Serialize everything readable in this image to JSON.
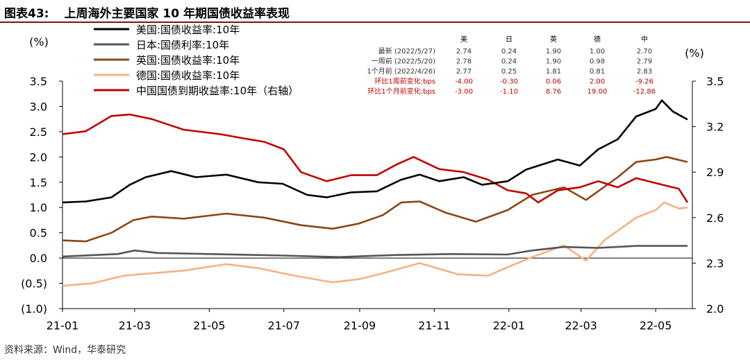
{
  "figure": {
    "label": "图表43:",
    "title": "上周海外主要国家 10 年期国债收益率表现",
    "source": "资料来源：Wind，华泰研究"
  },
  "chart_data": {
    "type": "line",
    "left_axis": {
      "unit": "(%)",
      "ylim": [
        -1.0,
        3.5
      ],
      "ticks": [
        3.5,
        3.0,
        2.5,
        2.0,
        1.5,
        1.0,
        0.5,
        0.0,
        -0.5,
        -1.0
      ],
      "tick_labels": [
        "3.5",
        "3.0",
        "2.5",
        "2.0",
        "1.5",
        "1.0",
        "0.5",
        "0.0",
        "(0.5)",
        "(1.0)"
      ]
    },
    "right_axis": {
      "unit": "(%)",
      "ylim": [
        2.0,
        3.5
      ],
      "ticks": [
        3.5,
        3.2,
        2.9,
        2.6,
        2.3,
        2.0
      ],
      "tick_labels": [
        "3.5",
        "3.2",
        "2.9",
        "2.6",
        "2.3",
        "2.0"
      ]
    },
    "x_axis": {
      "range": [
        "2021-01-01",
        "2022-05-31"
      ],
      "ticks": [
        "2021-01-01",
        "2021-03-01",
        "2021-05-01",
        "2021-07-01",
        "2021-09-01",
        "2021-11-01",
        "2022-01-01",
        "2022-03-01",
        "2022-05-01"
      ],
      "tick_labels": [
        "21-01",
        "21-03",
        "21-05",
        "21-07",
        "21-09",
        "21-11",
        "22-01",
        "22-03",
        "22-05"
      ]
    },
    "legend_position": "top-left",
    "series": [
      {
        "name": "美国:国债收益率:10年",
        "color": "#000000",
        "axis": "left",
        "points": [
          [
            "2021-01-01",
            1.1
          ],
          [
            "2021-01-20",
            1.12
          ],
          [
            "2021-02-10",
            1.2
          ],
          [
            "2021-02-25",
            1.45
          ],
          [
            "2021-03-10",
            1.6
          ],
          [
            "2021-03-31",
            1.72
          ],
          [
            "2021-04-20",
            1.6
          ],
          [
            "2021-05-15",
            1.65
          ],
          [
            "2021-06-10",
            1.5
          ],
          [
            "2021-06-30",
            1.47
          ],
          [
            "2021-07-20",
            1.25
          ],
          [
            "2021-08-05",
            1.2
          ],
          [
            "2021-08-25",
            1.3
          ],
          [
            "2021-09-15",
            1.32
          ],
          [
            "2021-10-05",
            1.55
          ],
          [
            "2021-10-20",
            1.65
          ],
          [
            "2021-11-05",
            1.52
          ],
          [
            "2021-11-25",
            1.6
          ],
          [
            "2021-12-10",
            1.45
          ],
          [
            "2021-12-31",
            1.52
          ],
          [
            "2022-01-15",
            1.75
          ],
          [
            "2022-02-10",
            1.95
          ],
          [
            "2022-02-28",
            1.83
          ],
          [
            "2022-03-15",
            2.15
          ],
          [
            "2022-03-31",
            2.35
          ],
          [
            "2022-04-15",
            2.8
          ],
          [
            "2022-05-01",
            2.95
          ],
          [
            "2022-05-06",
            3.12
          ],
          [
            "2022-05-15",
            2.9
          ],
          [
            "2022-05-27",
            2.74
          ]
        ]
      },
      {
        "name": "日本:国债利率:10年",
        "color": "#555555",
        "axis": "left",
        "points": [
          [
            "2021-01-01",
            0.03
          ],
          [
            "2021-02-15",
            0.08
          ],
          [
            "2021-03-01",
            0.15
          ],
          [
            "2021-03-20",
            0.1
          ],
          [
            "2021-05-01",
            0.08
          ],
          [
            "2021-07-01",
            0.05
          ],
          [
            "2021-08-15",
            0.02
          ],
          [
            "2021-10-01",
            0.06
          ],
          [
            "2021-11-15",
            0.08
          ],
          [
            "2021-12-31",
            0.07
          ],
          [
            "2022-01-20",
            0.15
          ],
          [
            "2022-02-15",
            0.22
          ],
          [
            "2022-03-15",
            0.2
          ],
          [
            "2022-04-15",
            0.24
          ],
          [
            "2022-05-27",
            0.24
          ]
        ]
      },
      {
        "name": "英国:国债收益率:10年",
        "color": "#8b4513",
        "axis": "left",
        "points": [
          [
            "2021-01-01",
            0.35
          ],
          [
            "2021-01-20",
            0.33
          ],
          [
            "2021-02-10",
            0.5
          ],
          [
            "2021-02-28",
            0.75
          ],
          [
            "2021-03-15",
            0.82
          ],
          [
            "2021-04-10",
            0.78
          ],
          [
            "2021-05-15",
            0.88
          ],
          [
            "2021-06-15",
            0.8
          ],
          [
            "2021-07-15",
            0.65
          ],
          [
            "2021-08-10",
            0.58
          ],
          [
            "2021-08-31",
            0.68
          ],
          [
            "2021-09-20",
            0.85
          ],
          [
            "2021-10-05",
            1.1
          ],
          [
            "2021-10-20",
            1.12
          ],
          [
            "2021-11-10",
            0.9
          ],
          [
            "2021-12-05",
            0.72
          ],
          [
            "2021-12-31",
            0.95
          ],
          [
            "2022-01-20",
            1.25
          ],
          [
            "2022-02-15",
            1.4
          ],
          [
            "2022-03-05",
            1.15
          ],
          [
            "2022-03-31",
            1.6
          ],
          [
            "2022-04-15",
            1.9
          ],
          [
            "2022-05-01",
            1.95
          ],
          [
            "2022-05-10",
            2.0
          ],
          [
            "2022-05-27",
            1.9
          ]
        ]
      },
      {
        "name": "德国:国债收益率:10年",
        "color": "#f4b183",
        "axis": "left",
        "points": [
          [
            "2021-01-01",
            -0.55
          ],
          [
            "2021-01-25",
            -0.5
          ],
          [
            "2021-02-20",
            -0.35
          ],
          [
            "2021-03-15",
            -0.3
          ],
          [
            "2021-04-10",
            -0.25
          ],
          [
            "2021-05-15",
            -0.12
          ],
          [
            "2021-06-10",
            -0.2
          ],
          [
            "2021-07-10",
            -0.35
          ],
          [
            "2021-08-10",
            -0.48
          ],
          [
            "2021-08-31",
            -0.42
          ],
          [
            "2021-09-20",
            -0.3
          ],
          [
            "2021-10-20",
            -0.1
          ],
          [
            "2021-11-20",
            -0.32
          ],
          [
            "2021-12-15",
            -0.35
          ],
          [
            "2021-12-31",
            -0.18
          ],
          [
            "2022-01-20",
            0.02
          ],
          [
            "2022-02-15",
            0.25
          ],
          [
            "2022-03-05",
            -0.05
          ],
          [
            "2022-03-20",
            0.35
          ],
          [
            "2022-04-15",
            0.8
          ],
          [
            "2022-05-01",
            0.95
          ],
          [
            "2022-05-08",
            1.1
          ],
          [
            "2022-05-20",
            0.98
          ],
          [
            "2022-05-27",
            1.0
          ]
        ]
      },
      {
        "name": "中国国债到期收益率:10年（右轴）",
        "color": "#c00000",
        "axis": "right",
        "points": [
          [
            "2021-01-01",
            3.15
          ],
          [
            "2021-01-20",
            3.17
          ],
          [
            "2021-02-10",
            3.27
          ],
          [
            "2021-02-25",
            3.28
          ],
          [
            "2021-03-15",
            3.25
          ],
          [
            "2021-04-10",
            3.18
          ],
          [
            "2021-05-10",
            3.15
          ],
          [
            "2021-05-31",
            3.12
          ],
          [
            "2021-06-15",
            3.1
          ],
          [
            "2021-07-01",
            3.05
          ],
          [
            "2021-07-15",
            2.9
          ],
          [
            "2021-08-05",
            2.84
          ],
          [
            "2021-08-25",
            2.88
          ],
          [
            "2021-09-15",
            2.88
          ],
          [
            "2021-10-01",
            2.95
          ],
          [
            "2021-10-15",
            3.0
          ],
          [
            "2021-11-05",
            2.92
          ],
          [
            "2021-11-25",
            2.9
          ],
          [
            "2021-12-15",
            2.85
          ],
          [
            "2021-12-31",
            2.78
          ],
          [
            "2022-01-15",
            2.76
          ],
          [
            "2022-01-25",
            2.7
          ],
          [
            "2022-02-10",
            2.78
          ],
          [
            "2022-02-28",
            2.8
          ],
          [
            "2022-03-15",
            2.84
          ],
          [
            "2022-03-31",
            2.8
          ],
          [
            "2022-04-15",
            2.86
          ],
          [
            "2022-05-05",
            2.82
          ],
          [
            "2022-05-20",
            2.79
          ],
          [
            "2022-05-27",
            2.7
          ]
        ]
      }
    ],
    "table": {
      "columns": [
        "美",
        "日",
        "英",
        "德",
        "中"
      ],
      "rows": [
        {
          "label": "最新 (2022/5/27)",
          "values": [
            "2.74",
            "0.24",
            "1.90",
            "1.00",
            "2.70"
          ],
          "color": "#333333"
        },
        {
          "label": "一周前 (2022/5/20)",
          "values": [
            "2.78",
            "0.24",
            "1.90",
            "0.98",
            "2.79"
          ],
          "color": "#333333"
        },
        {
          "label": "1个月前 (2022/4/26)",
          "values": [
            "2.77",
            "0.25",
            "1.81",
            "0.81",
            "2.83"
          ],
          "color": "#333333"
        },
        {
          "label": "环比1周前变化:bps",
          "values": [
            "-4.00",
            "-0.30",
            "0.06",
            "2.00",
            "-9.26"
          ],
          "color": "#c00000"
        },
        {
          "label": "环比1个月前变化:bps",
          "values": [
            "-3.00",
            "-1.10",
            "8.76",
            "19.00",
            "-12.86"
          ],
          "color": "#c00000"
        }
      ]
    }
  }
}
